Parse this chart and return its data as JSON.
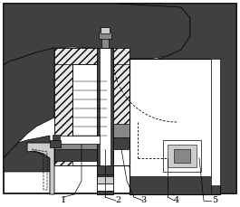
{
  "fig_width": 2.65,
  "fig_height": 2.29,
  "dpi": 100,
  "bg_color": "#ffffff",
  "dark_color": "#404040",
  "mid_color": "#888888",
  "light_gray": "#cccccc",
  "hatch_color": "#d0d0d0",
  "border_lw": 1.0,
  "labels": [
    "1",
    "2",
    "3",
    "4",
    "5"
  ]
}
